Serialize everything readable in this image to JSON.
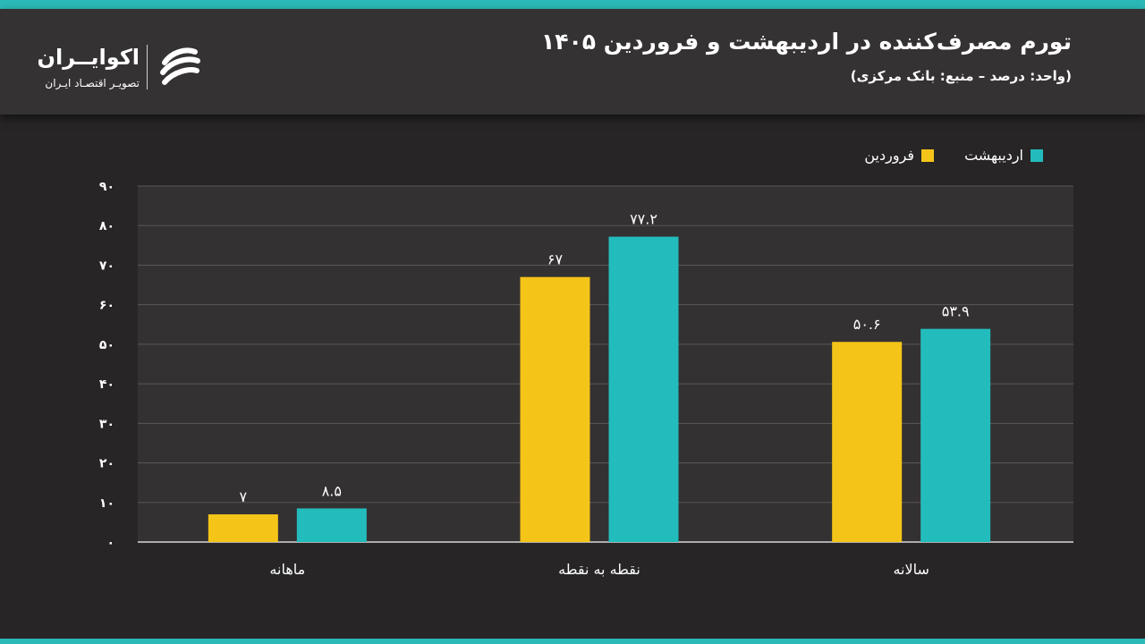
{
  "header": {
    "title": "تورم مصرف‌کننده در اردیبهشت و فروردین ۱۴۰۵",
    "subtitle": "(واحد: درصد – منبع: بانک مرکزی)"
  },
  "logo": {
    "name": "اکوایــران",
    "tagline": "تصویـر اقتصـاد ایـران"
  },
  "colors": {
    "background": "#272526",
    "header": "#353233",
    "accent": "#2bbab8",
    "farvardin": "#f5c419",
    "ordibehesht": "#23bcbc"
  },
  "chart_data": {
    "type": "bar",
    "categories": [
      "ماهانه",
      "نقطه به نقطه",
      "سالانه"
    ],
    "series": [
      {
        "name": "فروردین",
        "values": [
          7,
          67,
          50.6
        ],
        "labels": [
          "۷",
          "۶۷",
          "۵۰.۶"
        ],
        "color": "#f5c419"
      },
      {
        "name": "اردیبهشت",
        "values": [
          8.5,
          77.2,
          53.9
        ],
        "labels": [
          "۸.۵",
          "۷۷.۲",
          "۵۳.۹"
        ],
        "color": "#23bcbc"
      }
    ],
    "ylim": [
      0,
      90
    ],
    "yticks": [
      0,
      10,
      20,
      30,
      40,
      50,
      60,
      70,
      80,
      90
    ],
    "ytick_labels": [
      "۰",
      "۱۰",
      "۲۰",
      "۳۰",
      "۴۰",
      "۵۰",
      "۶۰",
      "۷۰",
      "۸۰",
      "۹۰"
    ],
    "grid": true,
    "legend": "top-right"
  }
}
